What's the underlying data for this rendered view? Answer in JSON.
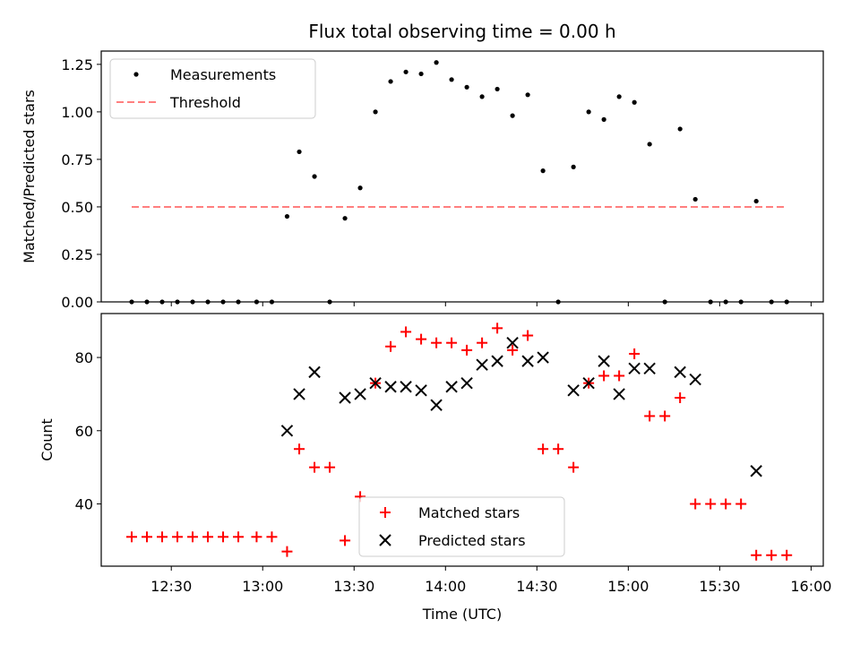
{
  "chart_data": [
    {
      "type": "scatter",
      "title": "Flux total observing time = 0.00 h",
      "xlabel": "",
      "ylabel": "Matched/Predicted stars",
      "ylim": [
        0,
        1.32
      ],
      "yticks": [
        "0.00",
        "0.25",
        "0.50",
        "0.75",
        "1.00",
        "1.25"
      ],
      "legend_position": "upper-left",
      "series": [
        {
          "name": "Measurements",
          "marker": "dot",
          "color": "#000000",
          "x": [
            "12:17",
            "12:22",
            "12:27",
            "12:32",
            "12:37",
            "12:42",
            "12:47",
            "12:52",
            "12:58",
            "13:03",
            "13:08",
            "13:12",
            "13:17",
            "13:22",
            "13:27",
            "13:32",
            "13:37",
            "13:42",
            "13:47",
            "13:52",
            "13:57",
            "14:02",
            "14:07",
            "14:12",
            "14:17",
            "14:22",
            "14:27",
            "14:32",
            "14:37",
            "14:42",
            "14:47",
            "14:52",
            "14:57",
            "15:02",
            "15:07",
            "15:12",
            "15:17",
            "15:22",
            "15:27",
            "15:32",
            "15:37",
            "15:42",
            "15:47",
            "15:52"
          ],
          "values": [
            0,
            0,
            0,
            0,
            0,
            0,
            0,
            0,
            0,
            0,
            0.45,
            0.79,
            0.66,
            0,
            0.44,
            0.6,
            1.0,
            1.16,
            1.21,
            1.2,
            1.26,
            1.17,
            1.13,
            1.08,
            1.12,
            0.98,
            1.09,
            0.69,
            0,
            0.71,
            1.0,
            0.96,
            1.08,
            1.05,
            0.83,
            0,
            0.91,
            0.54,
            0,
            0,
            0,
            0.53,
            0,
            0
          ]
        },
        {
          "name": "Threshold",
          "marker": "dashed-line",
          "color": "#ff7f7f",
          "x": [
            "12:17",
            "15:52"
          ],
          "values": [
            0.5,
            0.5
          ]
        }
      ]
    },
    {
      "type": "scatter",
      "title": "",
      "xlabel": "Time (UTC)",
      "ylabel": "Count",
      "ylim": [
        23,
        92
      ],
      "yticks": [
        "40",
        "60",
        "80"
      ],
      "xticks": [
        "12:30",
        "13:00",
        "13:30",
        "14:00",
        "14:30",
        "15:00",
        "15:30",
        "16:00"
      ],
      "xlim": [
        "12:07",
        "16:04"
      ],
      "legend_position": "lower-center",
      "series": [
        {
          "name": "Matched stars",
          "marker": "plus",
          "color": "#ff0000",
          "x": [
            "12:17",
            "12:22",
            "12:27",
            "12:32",
            "12:37",
            "12:42",
            "12:47",
            "12:52",
            "12:58",
            "13:03",
            "13:08",
            "13:12",
            "13:17",
            "13:22",
            "13:27",
            "13:32",
            "13:37",
            "13:42",
            "13:47",
            "13:52",
            "13:57",
            "14:02",
            "14:07",
            "14:12",
            "14:17",
            "14:22",
            "14:27",
            "14:32",
            "14:37",
            "14:42",
            "14:47",
            "14:52",
            "14:57",
            "15:02",
            "15:07",
            "15:12",
            "15:17",
            "15:22",
            "15:27",
            "15:32",
            "15:37",
            "15:42",
            "15:47",
            "15:52"
          ],
          "values": [
            31,
            31,
            31,
            31,
            31,
            31,
            31,
            31,
            31,
            31,
            27,
            55,
            50,
            50,
            30,
            42,
            73,
            83,
            87,
            85,
            84,
            84,
            82,
            84,
            88,
            82,
            86,
            55,
            55,
            50,
            73,
            75,
            75,
            81,
            64,
            64,
            69,
            40,
            40,
            40,
            40,
            26,
            26,
            26
          ]
        },
        {
          "name": "Predicted stars",
          "marker": "x",
          "color": "#000000",
          "x": [
            "13:08",
            "13:12",
            "13:17",
            "13:27",
            "13:32",
            "13:37",
            "13:42",
            "13:47",
            "13:52",
            "13:57",
            "14:02",
            "14:07",
            "14:12",
            "14:17",
            "14:22",
            "14:27",
            "14:32",
            "14:42",
            "14:47",
            "14:52",
            "14:57",
            "15:02",
            "15:07",
            "15:17",
            "15:22",
            "15:42"
          ],
          "values": [
            60,
            70,
            76,
            69,
            70,
            73,
            72,
            72,
            71,
            67,
            72,
            73,
            78,
            79,
            84,
            79,
            80,
            71,
            73,
            79,
            70,
            77,
            77,
            76,
            74,
            49
          ]
        }
      ]
    }
  ]
}
